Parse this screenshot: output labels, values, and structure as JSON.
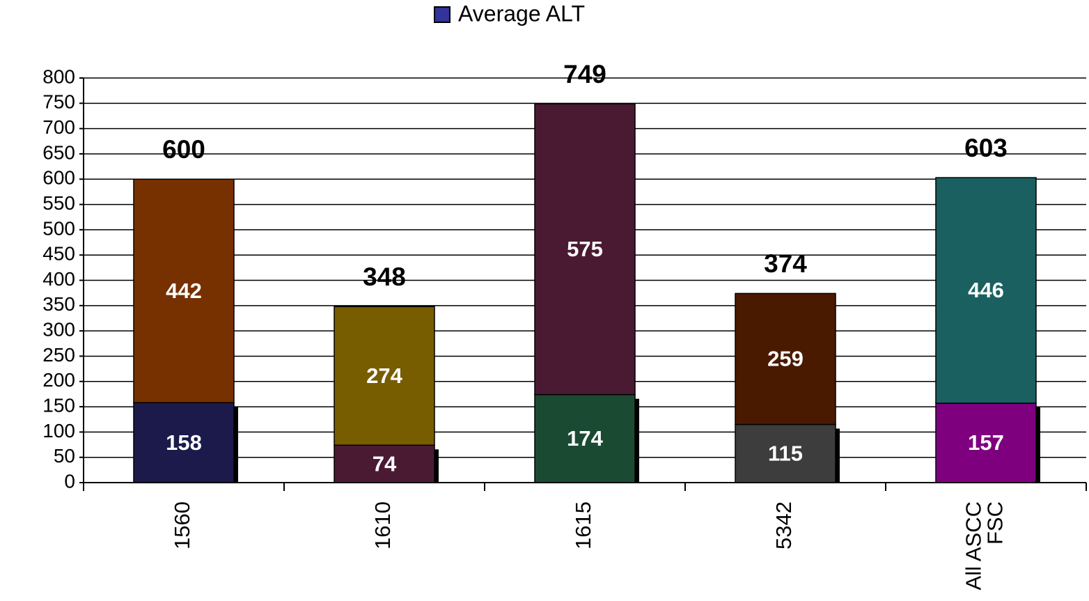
{
  "chart_data": {
    "type": "stacked_bar",
    "legend": "Average ALT",
    "legend_color": "#333399",
    "legend_position": "top",
    "categories": [
      "1560",
      "1610",
      "1615",
      "5342",
      "All ASCC\nFSC"
    ],
    "series": [
      {
        "name": "Average ALT",
        "values": [
          158,
          74,
          174,
          115,
          157
        ],
        "colors": [
          "#1b1a4b",
          "#4a1a33",
          "#1b4a33",
          "#3d3d3d",
          "#7f007f"
        ]
      },
      {
        "values": [
          442,
          274,
          575,
          259,
          446
        ],
        "colors": [
          "#773000",
          "#775c00",
          "#4a1a33",
          "#4a1a00",
          "#1a6060"
        ]
      }
    ],
    "totals": [
      600,
      348,
      749,
      374,
      603
    ],
    "ylim": [
      0,
      800
    ],
    "yticks": [
      0,
      50,
      100,
      150,
      200,
      250,
      300,
      350,
      400,
      450,
      500,
      550,
      600,
      650,
      700,
      750,
      800
    ],
    "grid": true
  }
}
